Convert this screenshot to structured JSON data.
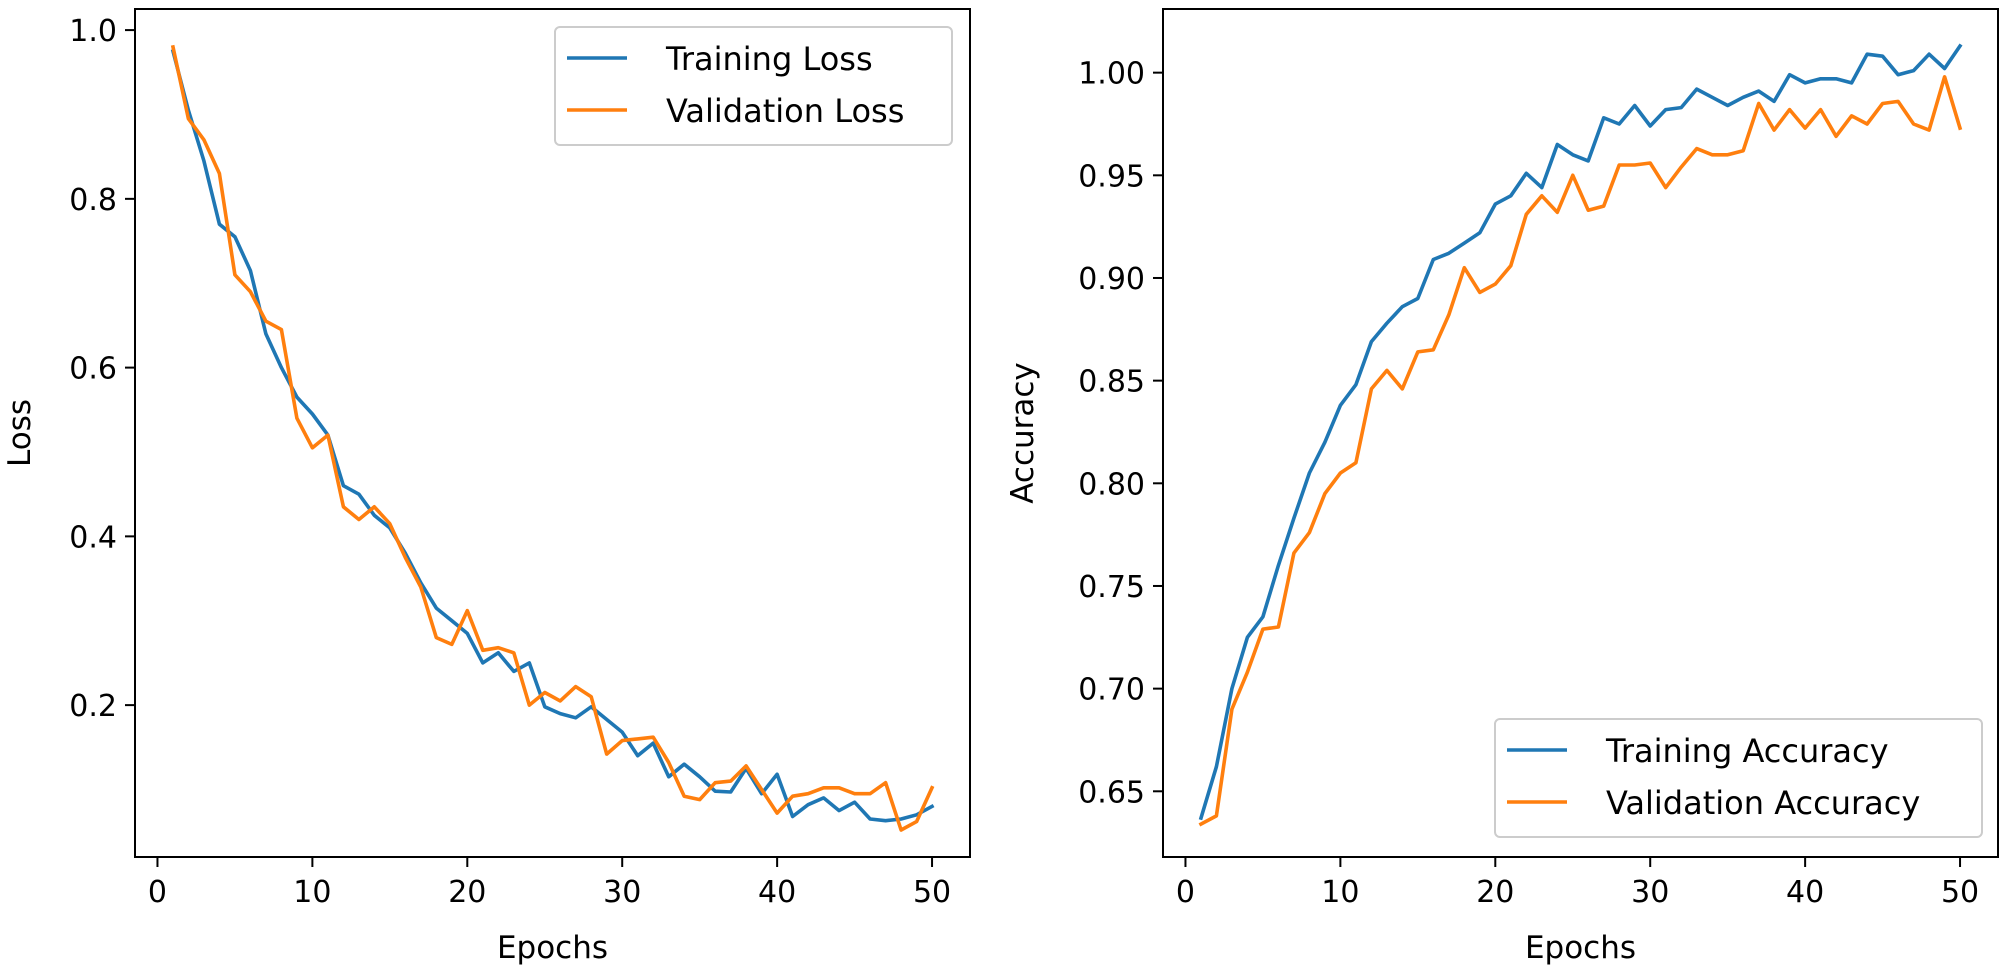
{
  "chart_data": [
    {
      "type": "line",
      "title": "",
      "xlabel": "Epochs",
      "ylabel": "Loss",
      "xlim": [
        -1.45,
        52.45
      ],
      "ylim": [
        0.02,
        1.025
      ],
      "xticks": [
        0,
        10,
        20,
        30,
        40,
        50
      ],
      "xtick_labels": [
        "0",
        "10",
        "20",
        "30",
        "40",
        "50"
      ],
      "yticks": [
        0.2,
        0.4,
        0.6,
        0.8,
        1.0
      ],
      "ytick_labels": [
        "0.2",
        "0.4",
        "0.6",
        "0.8",
        "1.0"
      ],
      "grid": false,
      "legend_position": "top-right",
      "x": [
        1,
        2,
        3,
        4,
        5,
        6,
        7,
        8,
        9,
        10,
        11,
        12,
        13,
        14,
        15,
        16,
        17,
        18,
        19,
        20,
        21,
        22,
        23,
        24,
        25,
        26,
        27,
        28,
        29,
        30,
        31,
        32,
        33,
        34,
        35,
        36,
        37,
        38,
        39,
        40,
        41,
        42,
        43,
        44,
        45,
        46,
        47,
        48,
        49,
        50
      ],
      "series": [
        {
          "name": "Training Loss",
          "color": "#1f77b4",
          "values": [
            0.975,
            0.905,
            0.845,
            0.77,
            0.755,
            0.715,
            0.64,
            0.6,
            0.565,
            0.545,
            0.52,
            0.46,
            0.45,
            0.425,
            0.41,
            0.38,
            0.345,
            0.315,
            0.3,
            0.285,
            0.25,
            0.262,
            0.24,
            0.25,
            0.198,
            0.19,
            0.185,
            0.198,
            0.183,
            0.168,
            0.14,
            0.155,
            0.115,
            0.13,
            0.115,
            0.098,
            0.097,
            0.125,
            0.095,
            0.118,
            0.068,
            0.082,
            0.09,
            0.075,
            0.085,
            0.065,
            0.063,
            0.065,
            0.07,
            0.08
          ]
        },
        {
          "name": "Validation Loss",
          "color": "#ff7f0e",
          "values": [
            0.98,
            0.895,
            0.87,
            0.83,
            0.71,
            0.69,
            0.655,
            0.645,
            0.54,
            0.505,
            0.52,
            0.435,
            0.42,
            0.435,
            0.415,
            0.375,
            0.34,
            0.28,
            0.272,
            0.312,
            0.265,
            0.268,
            0.262,
            0.2,
            0.215,
            0.205,
            0.222,
            0.21,
            0.142,
            0.158,
            0.16,
            0.162,
            0.132,
            0.092,
            0.088,
            0.108,
            0.11,
            0.128,
            0.1,
            0.072,
            0.092,
            0.095,
            0.102,
            0.102,
            0.095,
            0.095,
            0.108,
            0.052,
            0.062,
            0.102
          ]
        }
      ]
    },
    {
      "type": "line",
      "title": "",
      "xlabel": "Epochs",
      "ylabel": "Accuracy",
      "xlim": [
        -1.45,
        52.45
      ],
      "ylim": [
        0.618,
        1.031
      ],
      "xticks": [
        0,
        10,
        20,
        30,
        40,
        50
      ],
      "xtick_labels": [
        "0",
        "10",
        "20",
        "30",
        "40",
        "50"
      ],
      "yticks": [
        0.65,
        0.7,
        0.75,
        0.8,
        0.85,
        0.9,
        0.95,
        1.0
      ],
      "ytick_labels": [
        "0.65",
        "0.70",
        "0.75",
        "0.80",
        "0.85",
        "0.90",
        "0.95",
        "1.00"
      ],
      "grid": false,
      "legend_position": "bottom-right",
      "x": [
        1,
        2,
        3,
        4,
        5,
        6,
        7,
        8,
        9,
        10,
        11,
        12,
        13,
        14,
        15,
        16,
        17,
        18,
        19,
        20,
        21,
        22,
        23,
        24,
        25,
        26,
        27,
        28,
        29,
        30,
        31,
        32,
        33,
        34,
        35,
        36,
        37,
        38,
        39,
        40,
        41,
        42,
        43,
        44,
        45,
        46,
        47,
        48,
        49,
        50
      ],
      "series": [
        {
          "name": "Training Accuracy",
          "color": "#1f77b4",
          "values": [
            0.637,
            0.662,
            0.7,
            0.725,
            0.735,
            0.76,
            0.783,
            0.805,
            0.82,
            0.838,
            0.848,
            0.869,
            0.878,
            0.886,
            0.89,
            0.909,
            0.912,
            0.917,
            0.922,
            0.936,
            0.94,
            0.951,
            0.944,
            0.965,
            0.96,
            0.957,
            0.978,
            0.975,
            0.984,
            0.974,
            0.982,
            0.983,
            0.992,
            0.988,
            0.984,
            0.988,
            0.991,
            0.986,
            0.999,
            0.995,
            0.997,
            0.997,
            0.995,
            1.009,
            1.008,
            0.999,
            1.001,
            1.009,
            1.002,
            1.013
          ]
        },
        {
          "name": "Validation Accuracy",
          "color": "#ff7f0e",
          "values": [
            0.634,
            0.638,
            0.69,
            0.708,
            0.729,
            0.73,
            0.766,
            0.776,
            0.795,
            0.805,
            0.81,
            0.846,
            0.855,
            0.846,
            0.864,
            0.865,
            0.882,
            0.905,
            0.893,
            0.897,
            0.906,
            0.931,
            0.94,
            0.932,
            0.95,
            0.933,
            0.935,
            0.955,
            0.955,
            0.956,
            0.944,
            0.954,
            0.963,
            0.96,
            0.96,
            0.962,
            0.985,
            0.972,
            0.982,
            0.973,
            0.982,
            0.969,
            0.979,
            0.975,
            0.985,
            0.986,
            0.975,
            0.972,
            0.998,
            0.973
          ]
        }
      ]
    }
  ]
}
